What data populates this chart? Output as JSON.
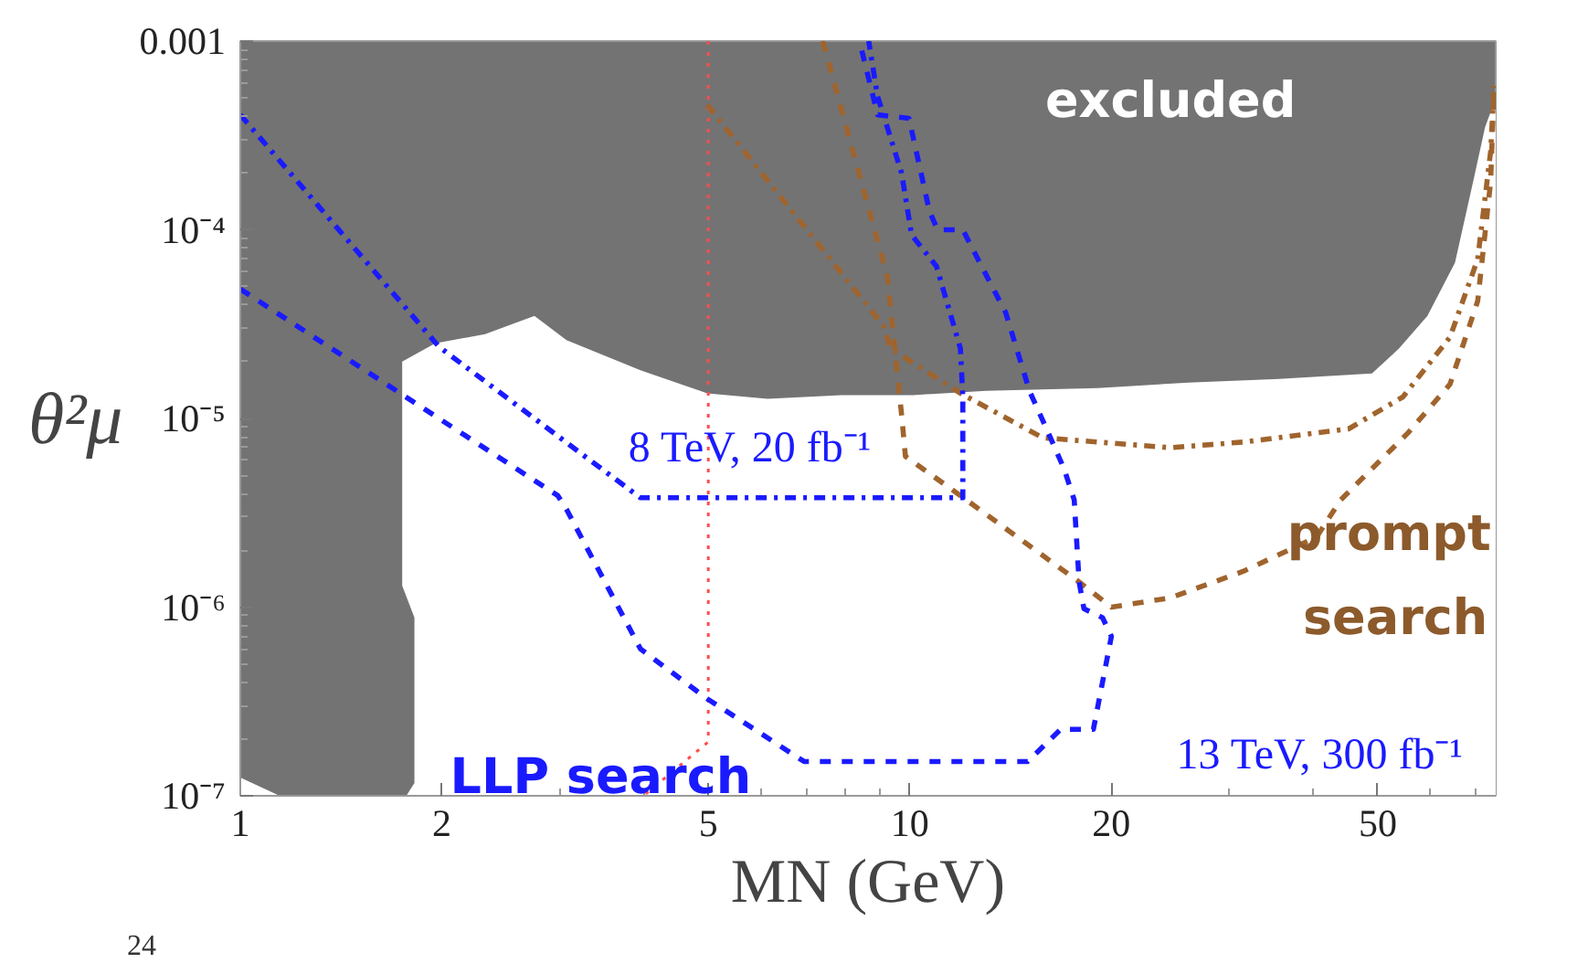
{
  "chart_data": {
    "type": "line",
    "log": "xy",
    "xlabel": "MN (GeV)",
    "ylabel": "θ²μ",
    "xlim": [
      1,
      75
    ],
    "ylim": [
      1e-07,
      0.001
    ],
    "xticks": [
      1,
      2,
      5,
      10,
      20,
      50
    ],
    "yticks": [
      {
        "value": 1e-07,
        "label": "10⁻⁷"
      },
      {
        "value": 1e-06,
        "label": "10⁻⁶"
      },
      {
        "value": 1e-05,
        "label": "10⁻⁵"
      },
      {
        "value": 0.0001,
        "label": "10⁻⁴"
      },
      0.001
    ],
    "series": [
      {
        "type": "area",
        "color": "#ffffff",
        "x": [
          1,
          1.145,
          1.77,
          1.82,
          1.82,
          1.745,
          1.745,
          1.955,
          2.32,
          2.75,
          3.07,
          3.96,
          4.98,
          6.13,
          7.9,
          10.1,
          13,
          19.1,
          26.1,
          35.6,
          49,
          53.8,
          59.3,
          65.2,
          69.4,
          72.3,
          75
        ],
        "values": [
          1.25e-07,
          1e-07,
          1e-07,
          1.17e-07,
          8.8e-07,
          1.3e-06,
          2e-05,
          2.5e-05,
          2.8e-05,
          3.5e-05,
          2.6e-05,
          1.8e-05,
          1.36e-05,
          1.27e-05,
          1.33e-05,
          1.33e-05,
          1.4e-05,
          1.45e-05,
          1.55e-05,
          1.62e-05,
          1.73e-05,
          2.35e-05,
          3.5e-05,
          6.7e-05,
          0.00018,
          0.00035,
          0.0005
        ]
      },
      {
        "color": "#ff4d4d",
        "line_style": "dotted",
        "x": [
          5,
          5,
          4.0
        ],
        "values": [
          0.001,
          1.93e-07,
          1e-07
        ]
      },
      {
        "color": "#a0642d",
        "line_style": "dashdot",
        "x": [
          4.98,
          9.13,
          9.36,
          11.9,
          15.8,
          24.5,
          31.5,
          45.2,
          54.5,
          64.1,
          70.5,
          73.7,
          74.6
        ],
        "values": [
          0.00046,
          3.1e-05,
          2.35e-05,
          1.36e-05,
          7.9e-06,
          7e-06,
          7.5e-06,
          8.8e-06,
          1.3e-05,
          2.7e-05,
          7e-05,
          0.00026,
          0.00058
        ]
      },
      {
        "color": "#a0642d",
        "line_style": "dashed",
        "x": [
          7.41,
          9.25,
          9.72,
          9.85,
          11.9,
          17.9,
          20.0,
          24.5,
          31.5,
          40.5,
          44.0,
          55.5,
          64.1,
          70.5,
          73.7,
          74.6
        ],
        "values": [
          0.001,
          5.7e-05,
          1.05e-05,
          6.3e-06,
          3.9e-06,
          1.36e-06,
          1e-06,
          1.12e-06,
          1.55e-06,
          2.35e-06,
          3.7e-06,
          8.4e-06,
          1.52e-05,
          4.2e-05,
          0.00018,
          0.00058
        ]
      },
      {
        "color": "#1a1aff",
        "line_style": "dashdot",
        "x": [
          1,
          1.98,
          3.27,
          3.96,
          12.0,
          12.0,
          11.9,
          10.96,
          10.06,
          9.72,
          8.95,
          8.68
        ],
        "values": [
          0.000407,
          2.4e-05,
          6.3e-06,
          3.8e-06,
          3.8e-06,
          1.3e-05,
          2.35e-05,
          6.4e-05,
          9.4e-05,
          0.0002,
          0.00051,
          0.001
        ]
      },
      {
        "color": "#1a1aff",
        "line_style": "dashed",
        "x": [
          1,
          1.98,
          2.98,
          3.07,
          3.96,
          4.98,
          6.95,
          15.0,
          16.8,
          18.8,
          20.0,
          19.4,
          18.2,
          17.9,
          17.6,
          17.0,
          16.1,
          15.1,
          13.9,
          12.8,
          12.0,
          11.0,
          10.7,
          9.97,
          8.95,
          8.41
        ],
        "values": [
          4.85e-05,
          1e-05,
          3.9e-06,
          3.3e-06,
          6e-07,
          3.27e-07,
          1.52e-07,
          1.52e-07,
          2.25e-07,
          2.25e-07,
          7e-07,
          8.8e-07,
          9.8e-07,
          1.36e-06,
          3.7e-06,
          5.4e-06,
          8.4e-06,
          1.39e-05,
          3.65e-05,
          6.4e-05,
          0.0001,
          0.0001,
          0.000125,
          0.00039,
          0.000407,
          0.001
        ]
      }
    ],
    "annotations": [
      "excluded",
      "8 TeV, 20 fb⁻¹",
      "LLP search",
      "13 TeV, 300 fb⁻¹",
      "prompt",
      "search",
      "24"
    ]
  }
}
